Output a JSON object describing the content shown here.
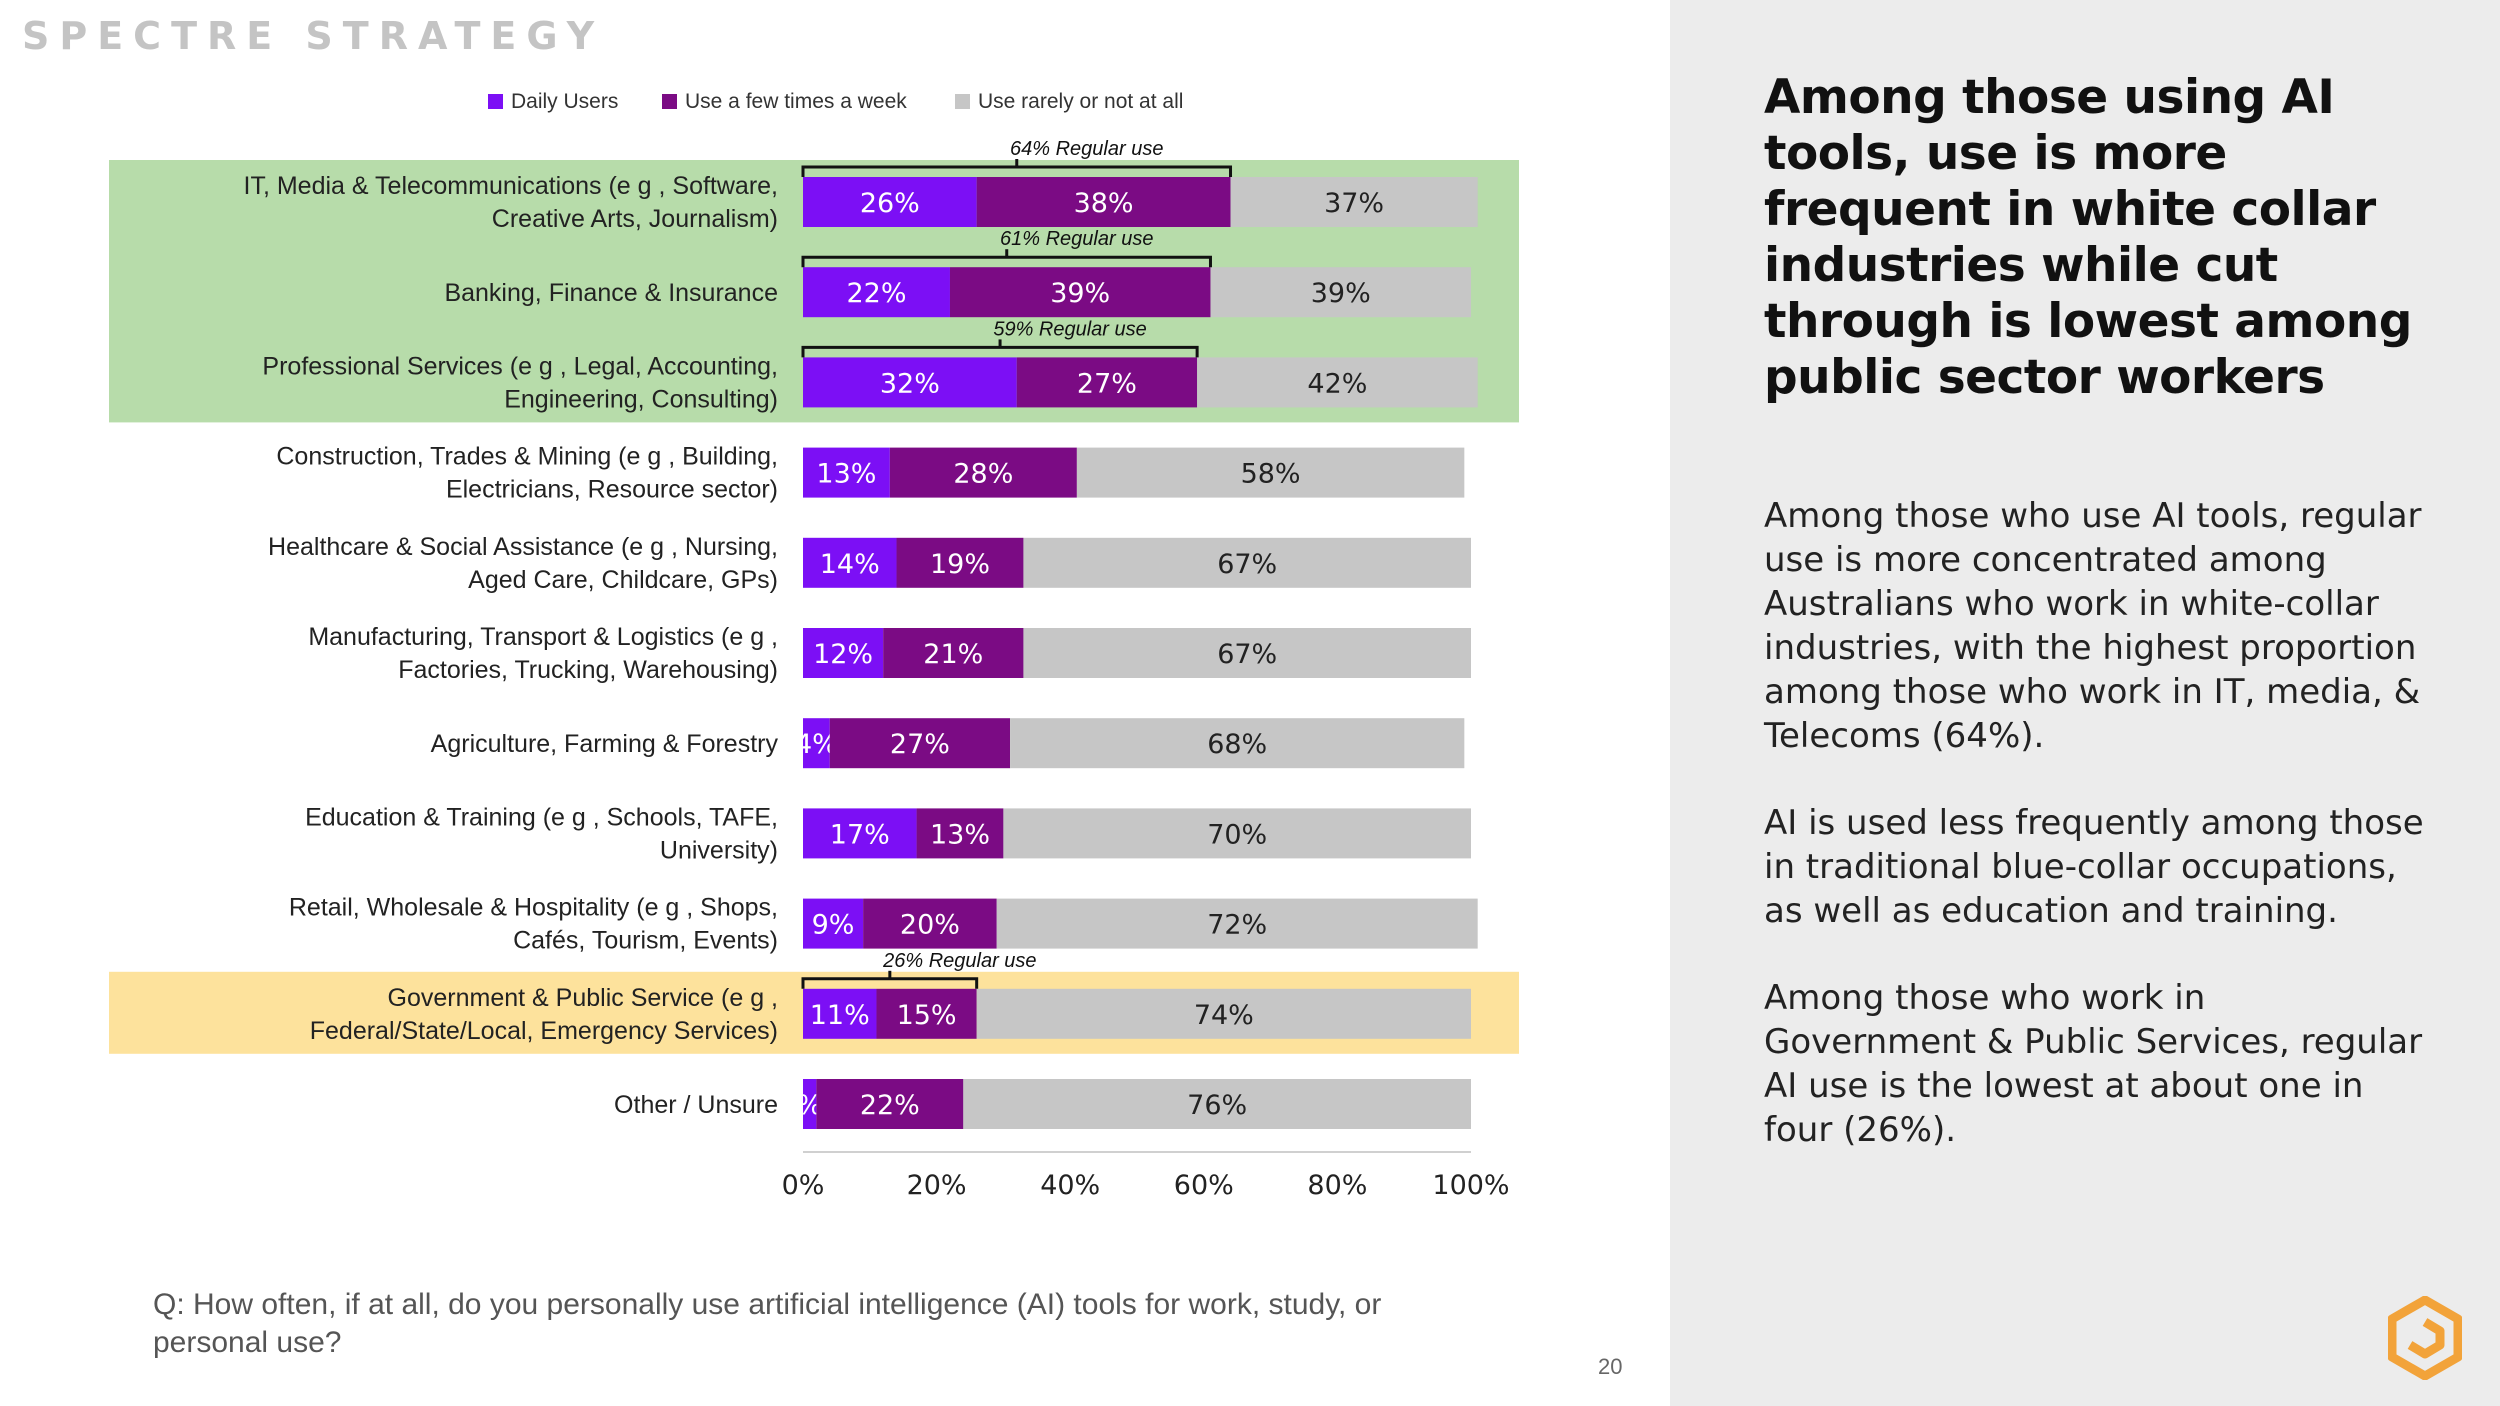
{
  "brand": "SPECTRE STRATEGY",
  "page_number": "20",
  "question": "Q: How often, if at all, do you personally use artificial intelligence (AI) tools for work, study, or personal use?",
  "right_panel": {
    "headline": "Among those using AI tools, use is more frequent in white collar industries while cut through is lowest among public sector workers",
    "paragraphs": [
      "Among those who use AI tools, regular use is more concentrated among Australians who work in white-collar industries, with the highest proportion among those who work in IT, media, & Telecoms (64%).",
      "AI is used less frequently among those in traditional blue-collar occupations, as well as education and training.",
      "Among those who work in Government & Public Services, regular AI use is the lowest at about one in four (26%)."
    ]
  },
  "colors": {
    "daily": "#7c0ff5",
    "few_times": "#7b0b84",
    "rarely": "#c6c6c6",
    "highlight_green": "#b7dcaa",
    "highlight_yellow": "#fde29c",
    "logo": "#f2a33a"
  },
  "chart_data": {
    "type": "bar",
    "orientation": "horizontal",
    "stacked": true,
    "legend_position": "top",
    "xlim": [
      0,
      100
    ],
    "x_ticks": [
      "0%",
      "20%",
      "40%",
      "60%",
      "80%",
      "100%"
    ],
    "categories": [
      "IT, Media & Telecommunications (e g , Software, Creative Arts, Journalism)",
      "Banking, Finance & Insurance",
      "Professional Services (e g , Legal, Accounting, Engineering, Consulting)",
      "Construction, Trades & Mining (e g , Building, Electricians, Resource sector)",
      "Healthcare & Social Assistance (e g , Nursing, Aged Care, Childcare, GPs)",
      "Manufacturing, Transport & Logistics (e g , Factories, Trucking, Warehousing)",
      "Agriculture, Farming & Forestry",
      "Education & Training (e g , Schools, TAFE, University)",
      "Retail, Wholesale & Hospitality (e g , Shops, Cafés, Tourism, Events)",
      "Government & Public Service (e g , Federal/State/Local, Emergency Services)",
      "Other / Unsure"
    ],
    "series": [
      {
        "name": "Daily Users",
        "values": [
          26,
          22,
          32,
          13,
          14,
          12,
          4,
          17,
          9,
          11,
          2
        ],
        "labels": [
          "26%",
          "22%",
          "32%",
          "13%",
          "14%",
          "12%",
          "4%",
          "17%",
          "9%",
          "11%",
          "%"
        ]
      },
      {
        "name": "Use a few times a week",
        "values": [
          38,
          39,
          27,
          28,
          19,
          21,
          27,
          13,
          20,
          15,
          22
        ],
        "labels": [
          "38%",
          "39%",
          "27%",
          "28%",
          "19%",
          "21%",
          "27%",
          "13%",
          "20%",
          "15%",
          "22%"
        ]
      },
      {
        "name": "Use rarely or not at all",
        "values": [
          37,
          39,
          42,
          58,
          67,
          67,
          68,
          70,
          72,
          74,
          76
        ],
        "labels": [
          "37%",
          "39%",
          "42%",
          "58%",
          "67%",
          "67%",
          "68%",
          "70%",
          "72%",
          "74%",
          "76%"
        ]
      }
    ],
    "annotations": [
      {
        "row": 0,
        "value": 64,
        "text": "64% Regular use"
      },
      {
        "row": 1,
        "value": 61,
        "text": "61% Regular use"
      },
      {
        "row": 2,
        "value": 59,
        "text": "59% Regular use"
      },
      {
        "row": 9,
        "value": 26,
        "text": "26% Regular use"
      }
    ],
    "highlights": [
      {
        "rows": [
          0,
          1,
          2
        ],
        "color": "green"
      },
      {
        "rows": [
          9
        ],
        "color": "yellow"
      }
    ]
  }
}
